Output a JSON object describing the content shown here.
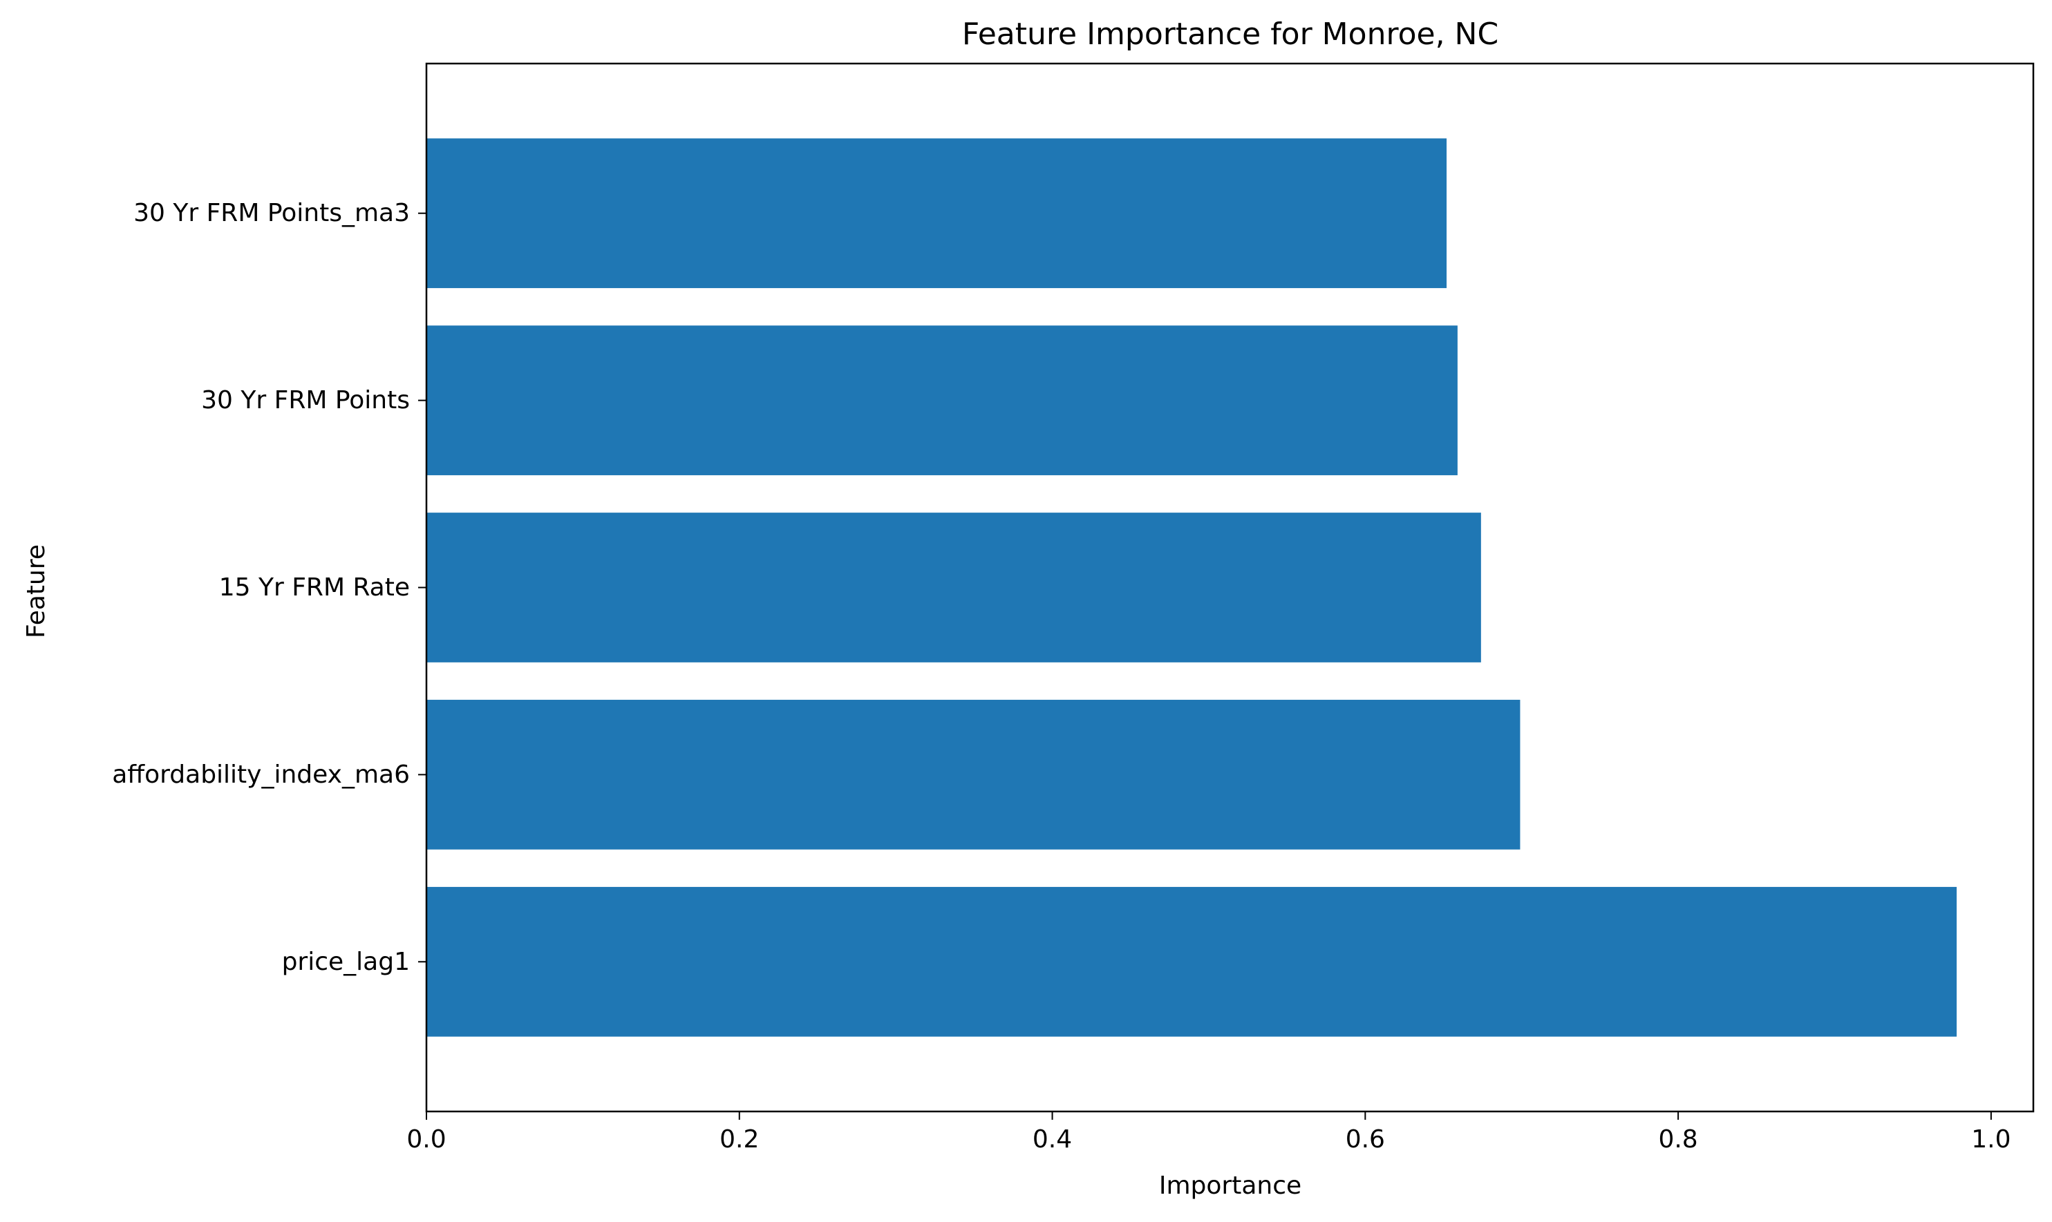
{
  "chart_data": {
    "type": "bar",
    "orientation": "horizontal",
    "title": "Feature Importance for Monroe, NC",
    "xlabel": "Importance",
    "ylabel": "Feature",
    "categories": [
      "price_lag1",
      "affordability_index_ma6",
      "15 Yr FRM Rate",
      "30 Yr FRM Points",
      "30 Yr FRM Points_ma3"
    ],
    "values": [
      0.978,
      0.699,
      0.674,
      0.659,
      0.652
    ],
    "xlim": [
      0.0,
      1.027
    ],
    "xticks": [
      0.0,
      0.2,
      0.4,
      0.6,
      0.8,
      1.0
    ],
    "xtick_labels": [
      "0.0",
      "0.2",
      "0.4",
      "0.6",
      "0.8",
      "1.0"
    ],
    "grid": false,
    "bar_color": "#1f77b4"
  }
}
